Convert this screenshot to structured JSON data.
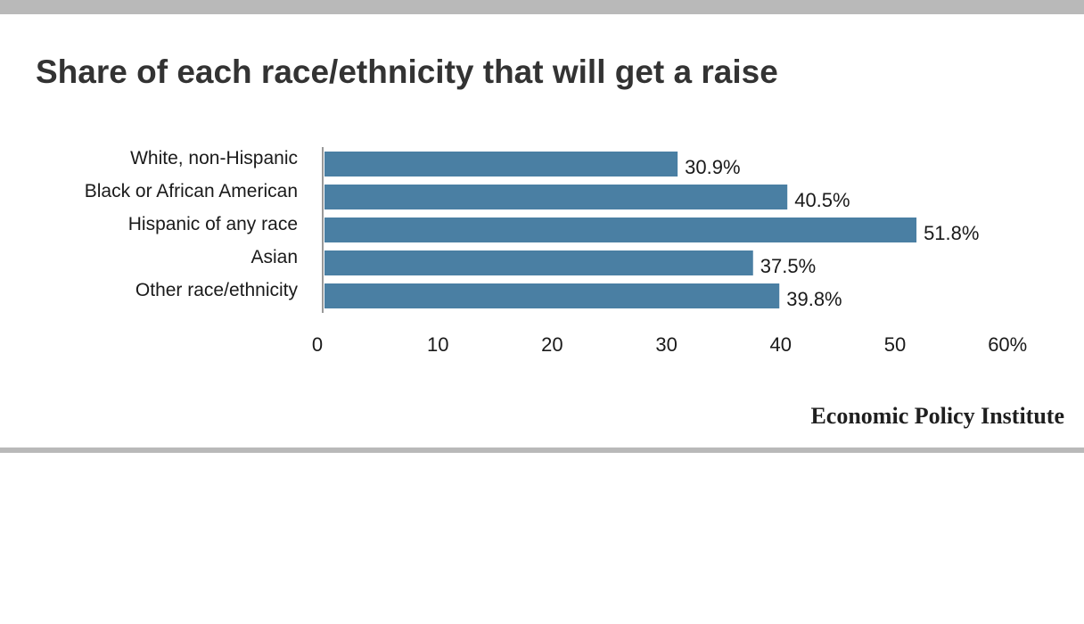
{
  "header": {
    "title": "Share of each race/ethnicity that will get a raise"
  },
  "footer": {
    "source": "Economic Policy Institute"
  },
  "colors": {
    "bar": "#4a7fa3",
    "axis_line": "#999999",
    "text": "#1a1a1a",
    "rule": "#b9b9b9"
  },
  "chart_data": {
    "type": "bar",
    "orientation": "horizontal",
    "categories": [
      "White, non-Hispanic",
      "Black or African American",
      "Hispanic of any race",
      "Asian",
      "Other race/ethnicity"
    ],
    "values": [
      30.9,
      40.5,
      51.8,
      37.5,
      39.8
    ],
    "data_labels": [
      "30.9%",
      "40.5%",
      "51.8%",
      "37.5%",
      "39.8%"
    ],
    "xlim": [
      0,
      60
    ],
    "x_ticks": [
      0,
      10,
      20,
      30,
      40,
      50,
      60
    ],
    "x_tick_labels": [
      "0",
      "10",
      "20",
      "30",
      "40",
      "50",
      "60%"
    ],
    "grid": false,
    "legend": "none"
  }
}
